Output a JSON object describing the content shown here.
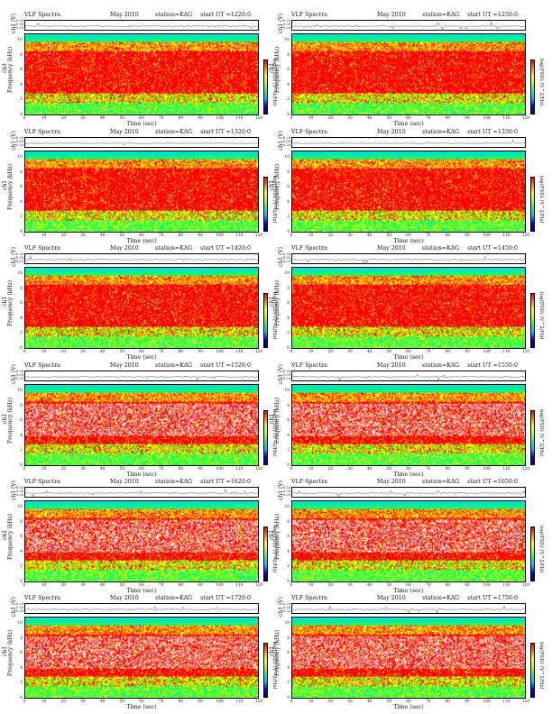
{
  "common": {
    "header_left": "VLF Spectra",
    "date": "May 2010",
    "station": "station=KAG",
    "ts_ylabel": "ch1 (V)",
    "freq_ylabel": "Frequency (kHz)",
    "ch_label": "ch1",
    "colorbar_label": "log(PSD) (V^2/Hz)",
    "xlabel": "Time (sec)",
    "x_ticks": [
      "0",
      "10",
      "20",
      "30",
      "40",
      "50",
      "60",
      "70",
      "80",
      "90",
      "100",
      "110",
      "120"
    ],
    "y_ticks": [
      "0",
      "2",
      "4",
      "6",
      "8",
      "10"
    ],
    "ts_ticks": [
      "0.20",
      "0.00",
      "-0.20"
    ]
  },
  "colors": {
    "red": "#ff0000",
    "orange": "#ff9900",
    "yellow": "#ffff00",
    "green": "#33ff33",
    "cyan": "#00e5c0",
    "blue": "#0000ff",
    "navy": "#000080"
  },
  "chart_data": [
    {
      "type": "heatmap",
      "start_label": "start UT =1220:0",
      "xlim": [
        0,
        120
      ],
      "ylim": [
        0,
        11
      ],
      "xlabel": "Time (sec)",
      "ylabel": "Frequency (kHz)",
      "colorbar": "log(PSD) (V^2/Hz)"
    },
    {
      "type": "heatmap",
      "start_label": "start UT =1250:0",
      "xlim": [
        0,
        120
      ],
      "ylim": [
        0,
        11
      ],
      "xlabel": "Time (sec)",
      "ylabel": "Frequency (kHz)",
      "colorbar": "log(PSD) (V^2/Hz)"
    },
    {
      "type": "heatmap",
      "start_label": "start UT =1320:0",
      "xlim": [
        0,
        120
      ],
      "ylim": [
        0,
        11
      ],
      "xlabel": "Time (sec)",
      "ylabel": "Frequency (kHz)",
      "colorbar": "log(PSD) (V^2/Hz)"
    },
    {
      "type": "heatmap",
      "start_label": "start UT =1350:0",
      "xlim": [
        0,
        120
      ],
      "ylim": [
        0,
        11
      ],
      "xlabel": "Time (sec)",
      "ylabel": "Frequency (kHz)",
      "colorbar": "log(PSD) (V^2/Hz)"
    },
    {
      "type": "heatmap",
      "start_label": "start UT =1420:0",
      "xlim": [
        0,
        120
      ],
      "ylim": [
        0,
        11
      ],
      "xlabel": "Time (sec)",
      "ylabel": "Frequency (kHz)",
      "colorbar": "log(PSD) (V^2/Hz)"
    },
    {
      "type": "heatmap",
      "start_label": "start UT =1450:0",
      "xlim": [
        0,
        120
      ],
      "ylim": [
        0,
        11
      ],
      "xlabel": "Time (sec)",
      "ylabel": "Frequency (kHz)",
      "colorbar": "log(PSD) (V^2/Hz)"
    },
    {
      "type": "heatmap",
      "start_label": "start UT =1520:0",
      "xlim": [
        0,
        120
      ],
      "ylim": [
        0,
        11
      ],
      "xlabel": "Time (sec)",
      "ylabel": "Frequency (kHz)",
      "colorbar": "log(PSD) (V^2/Hz)"
    },
    {
      "type": "heatmap",
      "start_label": "start UT =1550:0",
      "xlim": [
        0,
        120
      ],
      "ylim": [
        0,
        11
      ],
      "xlabel": "Time (sec)",
      "ylabel": "Frequency (kHz)",
      "colorbar": "log(PSD) (V^2/Hz)"
    },
    {
      "type": "heatmap",
      "start_label": "start UT =1620:0",
      "xlim": [
        0,
        120
      ],
      "ylim": [
        0,
        11
      ],
      "xlabel": "Time (sec)",
      "ylabel": "Frequency (kHz)",
      "colorbar": "log(PSD) (V^2/Hz)"
    },
    {
      "type": "heatmap",
      "start_label": "start UT =1650:0",
      "xlim": [
        0,
        120
      ],
      "ylim": [
        0,
        11
      ],
      "xlabel": "Time (sec)",
      "ylabel": "Frequency (kHz)",
      "colorbar": "log(PSD) (V^2/Hz)"
    },
    {
      "type": "heatmap",
      "start_label": "start UT =1720:0",
      "xlim": [
        0,
        120
      ],
      "ylim": [
        0,
        11
      ],
      "xlabel": "Time (sec)",
      "ylabel": "Frequency (kHz)",
      "colorbar": "log(PSD) (V^2/Hz)"
    },
    {
      "type": "heatmap",
      "start_label": "start UT =1750:0",
      "xlim": [
        0,
        120
      ],
      "ylim": [
        0,
        11
      ],
      "xlabel": "Time (sec)",
      "ylabel": "Frequency (kHz)",
      "colorbar": "log(PSD) (V^2/Hz)"
    }
  ]
}
